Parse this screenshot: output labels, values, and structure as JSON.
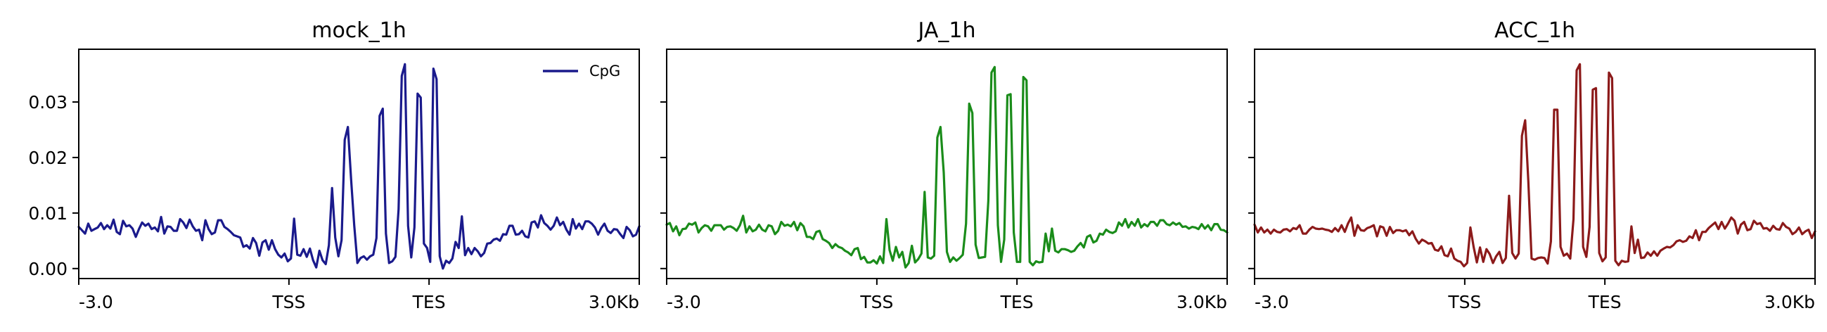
{
  "chart_data": [
    {
      "type": "line",
      "title": "mock_1h",
      "color": "#1a1a8c",
      "x_tick_labels": [
        "-3.0",
        "TSS",
        "TES",
        "3.0Kb"
      ],
      "y_tick_labels": [
        "0.00",
        "0.01",
        "0.02",
        "0.03"
      ],
      "y_ticks": [
        0.0,
        0.01,
        0.02,
        0.03
      ],
      "ylim": [
        -0.0018,
        0.0395
      ],
      "legend": {
        "entries": [
          "CpG"
        ],
        "position": "top-right"
      },
      "series": [
        {
          "name": "CpG",
          "values": [
            0.0075,
            0.0069,
            0.0063,
            0.0081,
            0.0068,
            0.0071,
            0.0074,
            0.0082,
            0.0071,
            0.0078,
            0.0072,
            0.0088,
            0.0066,
            0.0062,
            0.0086,
            0.0076,
            0.0078,
            0.0072,
            0.0057,
            0.0071,
            0.0083,
            0.0077,
            0.0081,
            0.0071,
            0.0074,
            0.0067,
            0.0093,
            0.0063,
            0.0076,
            0.0075,
            0.0068,
            0.0068,
            0.0089,
            0.0083,
            0.0073,
            0.0088,
            0.0076,
            0.0068,
            0.007,
            0.0051,
            0.0087,
            0.0071,
            0.0062,
            0.0065,
            0.0087,
            0.0087,
            0.0075,
            0.0071,
            0.0066,
            0.006,
            0.0058,
            0.0056,
            0.0039,
            0.0042,
            0.0036,
            0.0055,
            0.0046,
            0.0023,
            0.0047,
            0.0051,
            0.0034,
            0.0051,
            0.0035,
            0.0025,
            0.002,
            0.0027,
            0.0013,
            0.0018,
            0.009,
            0.0025,
            0.0023,
            0.0035,
            0.0021,
            0.0036,
            0.0015,
            0.0002,
            0.0032,
            0.0015,
            0.0008,
            0.0042,
            0.0145,
            0.0056,
            0.0022,
            0.0051,
            0.0232,
            0.0255,
            0.0162,
            0.0078,
            0.001,
            0.0019,
            0.0022,
            0.0016,
            0.0022,
            0.0025,
            0.0055,
            0.0275,
            0.0288,
            0.0063,
            0.001,
            0.0013,
            0.0021,
            0.0107,
            0.0347,
            0.0368,
            0.0077,
            0.002,
            0.0074,
            0.0315,
            0.0308,
            0.0045,
            0.0037,
            0.0012,
            0.036,
            0.0341,
            0.0022,
            0.0,
            0.0014,
            0.001,
            0.0018,
            0.0048,
            0.0037,
            0.0094,
            0.0024,
            0.0037,
            0.0026,
            0.0037,
            0.0031,
            0.0022,
            0.0028,
            0.0045,
            0.0046,
            0.0052,
            0.0054,
            0.005,
            0.0062,
            0.0061,
            0.0077,
            0.0077,
            0.0061,
            0.0062,
            0.0068,
            0.0058,
            0.0056,
            0.0083,
            0.0085,
            0.0074,
            0.0096,
            0.0082,
            0.0077,
            0.007,
            0.0077,
            0.0092,
            0.0078,
            0.0084,
            0.007,
            0.0061,
            0.0089,
            0.0072,
            0.0081,
            0.0071,
            0.0085,
            0.0085,
            0.0081,
            0.0074,
            0.0061,
            0.0073,
            0.0081,
            0.0068,
            0.0064,
            0.0071,
            0.007,
            0.0062,
            0.0055,
            0.0075,
            0.0069,
            0.0058,
            0.0061,
            0.0076
          ]
        }
      ]
    },
    {
      "type": "line",
      "title": "JA_1h",
      "color": "#1a8c1a",
      "x_tick_labels": [
        "-3.0",
        "TSS",
        "TES",
        "3.0Kb"
      ],
      "y_ticks": [
        0.0,
        0.01,
        0.02,
        0.03
      ],
      "ylim": [
        -0.0018,
        0.0395
      ],
      "series": [
        {
          "name": "",
          "values": [
            0.0079,
            0.0082,
            0.0067,
            0.0076,
            0.006,
            0.0071,
            0.0072,
            0.0081,
            0.0079,
            0.0083,
            0.0065,
            0.0073,
            0.0078,
            0.0076,
            0.0068,
            0.0078,
            0.0078,
            0.0078,
            0.007,
            0.0075,
            0.0076,
            0.0073,
            0.0068,
            0.0078,
            0.0095,
            0.0065,
            0.0076,
            0.0067,
            0.007,
            0.0079,
            0.007,
            0.0067,
            0.0078,
            0.0076,
            0.0062,
            0.0068,
            0.0084,
            0.0077,
            0.0079,
            0.0076,
            0.0084,
            0.0069,
            0.0082,
            0.0076,
            0.0057,
            0.0057,
            0.0053,
            0.0066,
            0.0068,
            0.0053,
            0.005,
            0.0046,
            0.0037,
            0.0044,
            0.0039,
            0.0037,
            0.0032,
            0.0029,
            0.0024,
            0.0035,
            0.0037,
            0.0017,
            0.0021,
            0.0011,
            0.0011,
            0.0015,
            0.0009,
            0.0022,
            0.001,
            0.0089,
            0.0033,
            0.0014,
            0.0039,
            0.002,
            0.003,
            0.0002,
            0.001,
            0.0041,
            0.0011,
            0.0017,
            0.0027,
            0.0138,
            0.002,
            0.0018,
            0.0023,
            0.0236,
            0.0255,
            0.0173,
            0.003,
            0.0012,
            0.002,
            0.0014,
            0.0019,
            0.0025,
            0.0081,
            0.0297,
            0.028,
            0.0043,
            0.0019,
            0.002,
            0.0021,
            0.0122,
            0.0353,
            0.0363,
            0.0078,
            0.0012,
            0.0052,
            0.0312,
            0.0314,
            0.0065,
            0.0012,
            0.0012,
            0.0345,
            0.0339,
            0.0012,
            0.0006,
            0.0013,
            0.0011,
            0.0012,
            0.0063,
            0.0031,
            0.0072,
            0.0032,
            0.0029,
            0.0035,
            0.0035,
            0.0033,
            0.003,
            0.0032,
            0.004,
            0.0046,
            0.0038,
            0.0057,
            0.006,
            0.0047,
            0.005,
            0.0063,
            0.0061,
            0.007,
            0.0066,
            0.0064,
            0.0067,
            0.0083,
            0.0077,
            0.0089,
            0.0074,
            0.0084,
            0.0077,
            0.0089,
            0.0074,
            0.008,
            0.0076,
            0.0084,
            0.0084,
            0.0077,
            0.0087,
            0.0087,
            0.008,
            0.0078,
            0.0083,
            0.0079,
            0.0082,
            0.0075,
            0.0076,
            0.0072,
            0.0075,
            0.0074,
            0.0071,
            0.008,
            0.0072,
            0.0078,
            0.0069,
            0.008,
            0.008,
            0.007,
            0.0069,
            0.0065
          ]
        }
      ]
    },
    {
      "type": "line",
      "title": "ACC_1h",
      "color": "#8c1a1a",
      "x_tick_labels": [
        "-3.0",
        "TSS",
        "TES",
        "3.0Kb"
      ],
      "y_ticks": [
        0.0,
        0.01,
        0.02,
        0.03
      ],
      "ylim": [
        -0.0018,
        0.0395
      ],
      "series": [
        {
          "name": "",
          "values": [
            0.0079,
            0.0065,
            0.0074,
            0.0065,
            0.007,
            0.0063,
            0.007,
            0.0066,
            0.0065,
            0.007,
            0.0071,
            0.0067,
            0.0073,
            0.0071,
            0.0078,
            0.0063,
            0.0063,
            0.007,
            0.0075,
            0.0072,
            0.0071,
            0.0072,
            0.007,
            0.0069,
            0.0066,
            0.0073,
            0.0067,
            0.0078,
            0.0066,
            0.0081,
            0.0092,
            0.0059,
            0.0078,
            0.0069,
            0.0068,
            0.0073,
            0.0075,
            0.0078,
            0.0058,
            0.0076,
            0.0074,
            0.0059,
            0.0075,
            0.0064,
            0.0069,
            0.0069,
            0.0067,
            0.0069,
            0.006,
            0.0067,
            0.0054,
            0.0045,
            0.0052,
            0.0049,
            0.0045,
            0.0046,
            0.0034,
            0.0032,
            0.004,
            0.0024,
            0.0022,
            0.0036,
            0.0018,
            0.0014,
            0.0012,
            0.0004,
            0.001,
            0.0074,
            0.0039,
            0.0011,
            0.0038,
            0.0012,
            0.0035,
            0.0026,
            0.001,
            0.0022,
            0.003,
            0.001,
            0.0019,
            0.0131,
            0.0028,
            0.0018,
            0.0027,
            0.0239,
            0.0267,
            0.0157,
            0.0018,
            0.0016,
            0.0019,
            0.002,
            0.0019,
            0.0009,
            0.0049,
            0.0286,
            0.0286,
            0.0039,
            0.0023,
            0.0027,
            0.0018,
            0.0089,
            0.0357,
            0.0368,
            0.0039,
            0.0021,
            0.0075,
            0.0322,
            0.0325,
            0.0028,
            0.0013,
            0.002,
            0.0353,
            0.0343,
            0.0014,
            0.0006,
            0.0014,
            0.0012,
            0.0013,
            0.0076,
            0.0028,
            0.0052,
            0.0019,
            0.002,
            0.0029,
            0.0023,
            0.0031,
            0.0023,
            0.0032,
            0.0036,
            0.0039,
            0.0038,
            0.0042,
            0.0049,
            0.0051,
            0.0048,
            0.005,
            0.0058,
            0.0055,
            0.0069,
            0.0051,
            0.0066,
            0.0066,
            0.0073,
            0.0078,
            0.0083,
            0.0071,
            0.0084,
            0.0072,
            0.0081,
            0.0092,
            0.0086,
            0.0063,
            0.0079,
            0.0084,
            0.0069,
            0.0071,
            0.0086,
            0.008,
            0.0082,
            0.0072,
            0.0073,
            0.0068,
            0.0077,
            0.0071,
            0.007,
            0.0082,
            0.0075,
            0.0072,
            0.0062,
            0.0066,
            0.0074,
            0.0062,
            0.0067,
            0.007,
            0.0055,
            0.0067
          ]
        }
      ]
    }
  ]
}
